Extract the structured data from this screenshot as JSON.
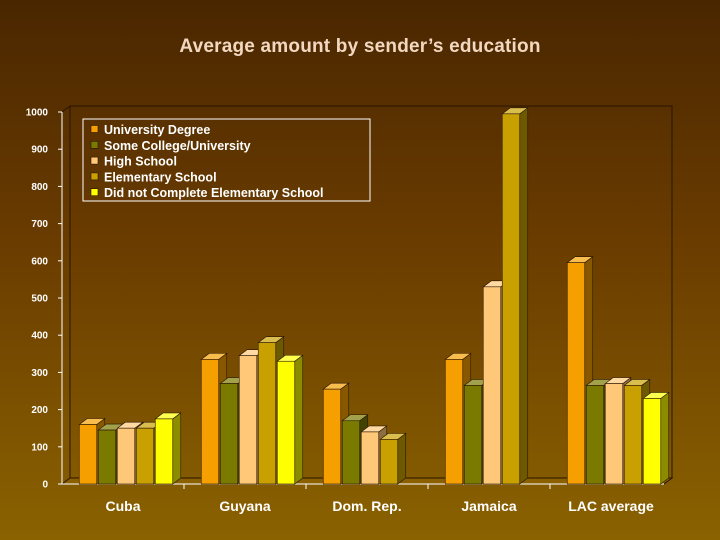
{
  "chart_data": {
    "type": "bar",
    "title": "Average amount by sender’s education",
    "xlabel": "",
    "ylabel": "",
    "ylim": [
      0,
      1000
    ],
    "yticks": [
      0,
      100,
      200,
      300,
      400,
      500,
      600,
      700,
      800,
      900,
      1000
    ],
    "grid": false,
    "legend": "top-left",
    "categories": [
      "Cuba",
      "Guyana",
      "Dom. Rep.",
      "Jamaica",
      "LAC average"
    ],
    "series": [
      {
        "name": "University Degree",
        "color": "#f5a000",
        "values": [
          160,
          335,
          255,
          335,
          595
        ]
      },
      {
        "name": "Some College/University",
        "color": "#7a7a00",
        "values": [
          145,
          270,
          170,
          265,
          265
        ]
      },
      {
        "name": "High School",
        "color": "#ffc878",
        "values": [
          150,
          345,
          140,
          530,
          270
        ]
      },
      {
        "name": "Elementary School",
        "color": "#c8a000",
        "values": [
          150,
          380,
          120,
          995,
          265
        ]
      },
      {
        "name": "Did not Complete Elementary School",
        "color": "#ffff00",
        "values": [
          175,
          330,
          null,
          null,
          230
        ]
      }
    ]
  }
}
